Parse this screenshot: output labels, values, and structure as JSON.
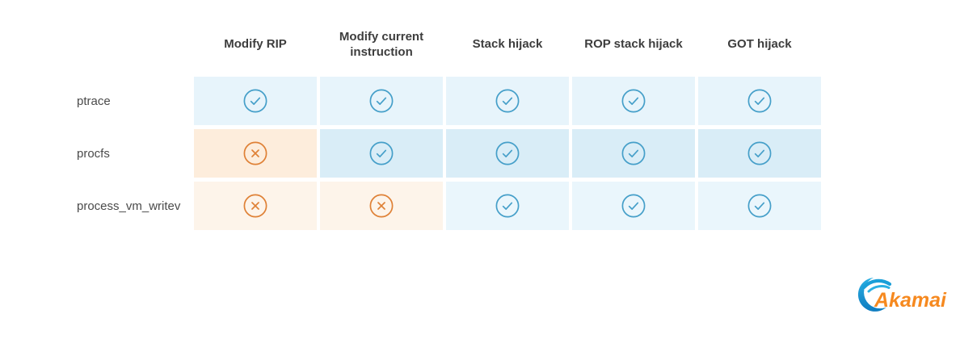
{
  "table": {
    "columns": [
      "Modify RIP",
      "Modify current instruction",
      "Stack hijack",
      "ROP stack hijack",
      "GOT hijack"
    ],
    "rows": [
      {
        "label": "ptrace",
        "cells": [
          "yes",
          "yes",
          "yes",
          "yes",
          "yes"
        ]
      },
      {
        "label": "procfs",
        "cells": [
          "no",
          "yes",
          "yes",
          "yes",
          "yes"
        ]
      },
      {
        "label": "process_vm_writev",
        "cells": [
          "no",
          "no",
          "yes",
          "yes",
          "yes"
        ]
      }
    ],
    "cell_icons": {
      "yes": "check-in-circle",
      "no": "x-in-circle"
    }
  },
  "colors": {
    "check_icon": "#459fc9",
    "cross_icon": "#df8136",
    "row_yes_bg": [
      "#e7f4fb",
      "#d9edf7",
      "#eaf6fc"
    ],
    "row_no_bg": [
      null,
      "#fdeddc",
      "#fdf4ea"
    ],
    "header_text": "#3d3d3d",
    "row_label_text": "#4a4a4a"
  },
  "logo": {
    "text": "Akamai",
    "text_color": "#f6891f",
    "swoosh_color_top": "#2bb0e3",
    "swoosh_color_mid": "#1b9fd8",
    "swoosh_color_bottom": "#0f7cc0"
  }
}
